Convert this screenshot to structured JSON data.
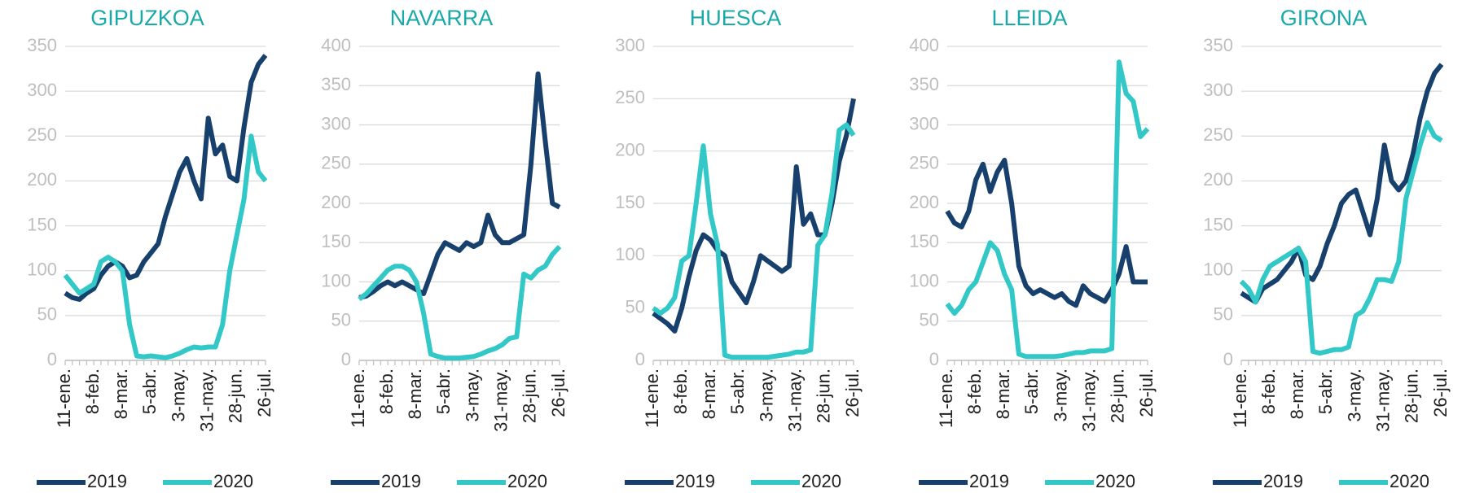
{
  "chart_data": [
    {
      "type": "line",
      "title": "GIPUZKOA",
      "categories": [
        "11-ene.",
        null,
        null,
        null,
        "8-feb.",
        null,
        null,
        null,
        "8-mar.",
        null,
        null,
        null,
        "5-abr.",
        null,
        null,
        null,
        "3-may.",
        null,
        null,
        null,
        "31-may.",
        null,
        null,
        null,
        "28-jun.",
        null,
        null,
        null,
        "26-jul."
      ],
      "series": [
        {
          "name": "2019",
          "color": "#17406d",
          "values": [
            75,
            70,
            68,
            75,
            80,
            95,
            105,
            110,
            105,
            92,
            95,
            110,
            120,
            130,
            160,
            185,
            210,
            225,
            200,
            180,
            270,
            230,
            240,
            205,
            200,
            260,
            310,
            330,
            340
          ]
        },
        {
          "name": "2020",
          "color": "#33c8c8",
          "values": [
            95,
            85,
            75,
            80,
            85,
            110,
            115,
            110,
            100,
            40,
            5,
            4,
            5,
            4,
            3,
            5,
            8,
            12,
            15,
            14,
            15,
            15,
            40,
            100,
            140,
            180,
            250,
            210,
            200
          ]
        }
      ],
      "ylim": [
        0,
        350
      ],
      "yticks": [
        0,
        50,
        100,
        150,
        200,
        250,
        300,
        350
      ],
      "grid": true,
      "legend": "bottom"
    },
    {
      "type": "line",
      "title": "NAVARRA",
      "categories": [
        "11-ene.",
        null,
        null,
        null,
        "8-feb.",
        null,
        null,
        null,
        "8-mar.",
        null,
        null,
        null,
        "5-abr.",
        null,
        null,
        null,
        "3-may.",
        null,
        null,
        null,
        "31-may.",
        null,
        null,
        null,
        "28-jun.",
        null,
        null,
        null,
        "26-jul."
      ],
      "series": [
        {
          "name": "2019",
          "color": "#17406d",
          "values": [
            80,
            82,
            88,
            95,
            100,
            95,
            100,
            95,
            90,
            85,
            110,
            135,
            150,
            145,
            140,
            150,
            145,
            150,
            185,
            160,
            150,
            150,
            155,
            160,
            250,
            365,
            280,
            200,
            195
          ]
        },
        {
          "name": "2020",
          "color": "#33c8c8",
          "values": [
            78,
            85,
            95,
            105,
            115,
            120,
            120,
            115,
            100,
            60,
            8,
            5,
            3,
            3,
            3,
            4,
            5,
            8,
            12,
            15,
            20,
            28,
            30,
            110,
            105,
            115,
            120,
            135,
            145
          ]
        }
      ],
      "ylim": [
        0,
        400
      ],
      "yticks": [
        0,
        50,
        100,
        150,
        200,
        250,
        300,
        350,
        400
      ],
      "grid": true,
      "legend": "bottom"
    },
    {
      "type": "line",
      "title": "HUESCA",
      "categories": [
        "11-ene.",
        null,
        null,
        null,
        "8-feb.",
        null,
        null,
        null,
        "8-mar.",
        null,
        null,
        null,
        "5-abr.",
        null,
        null,
        null,
        "3-may.",
        null,
        null,
        null,
        "31-may.",
        null,
        null,
        null,
        "28-jun.",
        null,
        null,
        null,
        "26-jul."
      ],
      "series": [
        {
          "name": "2019",
          "color": "#17406d",
          "values": [
            45,
            40,
            35,
            28,
            50,
            80,
            105,
            120,
            115,
            105,
            100,
            75,
            65,
            55,
            75,
            100,
            95,
            90,
            85,
            90,
            185,
            130,
            140,
            120,
            120,
            150,
            190,
            215,
            250
          ]
        },
        {
          "name": "2020",
          "color": "#33c8c8",
          "values": [
            50,
            45,
            50,
            60,
            95,
            100,
            150,
            205,
            140,
            110,
            5,
            3,
            3,
            3,
            3,
            3,
            3,
            4,
            5,
            6,
            8,
            8,
            10,
            110,
            120,
            160,
            220,
            225,
            215
          ]
        }
      ],
      "ylim": [
        0,
        300
      ],
      "yticks": [
        0,
        50,
        100,
        150,
        200,
        250,
        300
      ],
      "grid": true,
      "legend": "bottom"
    },
    {
      "type": "line",
      "title": "LLEIDA",
      "categories": [
        "11-ene.",
        null,
        null,
        null,
        "8-feb.",
        null,
        null,
        null,
        "8-mar.",
        null,
        null,
        null,
        "5-abr.",
        null,
        null,
        null,
        "3-may.",
        null,
        null,
        null,
        "31-may.",
        null,
        null,
        null,
        "28-jun.",
        null,
        null,
        null,
        "26-jul."
      ],
      "series": [
        {
          "name": "2019",
          "color": "#17406d",
          "values": [
            190,
            175,
            170,
            190,
            230,
            250,
            215,
            240,
            255,
            200,
            120,
            95,
            85,
            90,
            85,
            80,
            85,
            75,
            70,
            95,
            85,
            80,
            75,
            90,
            110,
            145,
            100,
            100,
            100
          ]
        },
        {
          "name": "2020",
          "color": "#33c8c8",
          "values": [
            72,
            60,
            70,
            90,
            100,
            125,
            150,
            140,
            110,
            90,
            8,
            5,
            5,
            5,
            5,
            5,
            6,
            8,
            10,
            10,
            12,
            12,
            12,
            15,
            380,
            340,
            330,
            285,
            295
          ]
        }
      ],
      "ylim": [
        0,
        400
      ],
      "yticks": [
        0,
        50,
        100,
        150,
        200,
        250,
        300,
        350,
        400
      ],
      "grid": true,
      "legend": "bottom"
    },
    {
      "type": "line",
      "title": "GIRONA",
      "categories": [
        "11-ene.",
        null,
        null,
        null,
        "8-feb.",
        null,
        null,
        null,
        "8-mar.",
        null,
        null,
        null,
        "5-abr.",
        null,
        null,
        null,
        "3-may.",
        null,
        null,
        null,
        "31-may.",
        null,
        null,
        null,
        "28-jun.",
        null,
        null,
        null,
        "26-jul."
      ],
      "series": [
        {
          "name": "2019",
          "color": "#17406d",
          "values": [
            75,
            70,
            65,
            80,
            85,
            90,
            100,
            110,
            125,
            95,
            90,
            105,
            130,
            150,
            175,
            185,
            190,
            165,
            140,
            180,
            240,
            200,
            190,
            200,
            230,
            270,
            300,
            320,
            330
          ]
        },
        {
          "name": "2020",
          "color": "#33c8c8",
          "values": [
            88,
            80,
            65,
            90,
            105,
            110,
            115,
            120,
            125,
            110,
            10,
            8,
            10,
            12,
            12,
            15,
            50,
            55,
            70,
            90,
            90,
            88,
            110,
            180,
            210,
            240,
            265,
            250,
            245
          ]
        }
      ],
      "ylim": [
        0,
        350
      ],
      "yticks": [
        0,
        50,
        100,
        150,
        200,
        250,
        300,
        350
      ],
      "grid": true,
      "legend": "bottom"
    }
  ]
}
